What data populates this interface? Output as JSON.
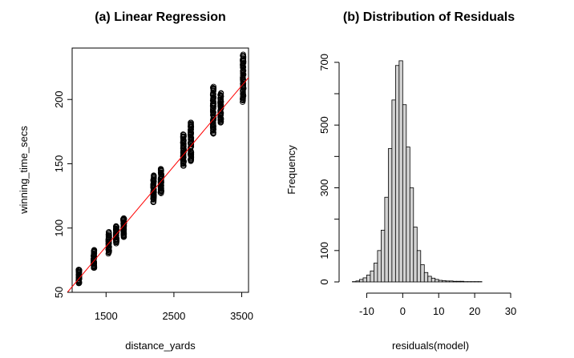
{
  "chart_data": [
    {
      "type": "scatter",
      "title": "(a) Linear Regression",
      "xlabel": "distance_yards",
      "ylabel": "winning_time_secs",
      "xlim": [
        1000,
        3600
      ],
      "ylim": [
        50,
        240
      ],
      "xticks": [
        1500,
        2500,
        3500
      ],
      "yticks": [
        50,
        100,
        150,
        200
      ],
      "point_color": "#000000",
      "line_color": "#ff0000",
      "regression_line": {
        "x": [
          930,
          3600
        ],
        "y": [
          50,
          217
        ]
      },
      "groups": [
        {
          "x": 1100,
          "y_min": 57,
          "y_max": 68
        },
        {
          "x": 1320,
          "y_min": 69,
          "y_max": 83
        },
        {
          "x": 1540,
          "y_min": 80,
          "y_max": 97
        },
        {
          "x": 1650,
          "y_min": 88,
          "y_max": 102
        },
        {
          "x": 1760,
          "y_min": 93,
          "y_max": 108
        },
        {
          "x": 2200,
          "y_min": 120,
          "y_max": 141
        },
        {
          "x": 2310,
          "y_min": 127,
          "y_max": 146
        },
        {
          "x": 2640,
          "y_min": 148,
          "y_max": 173
        },
        {
          "x": 2750,
          "y_min": 152,
          "y_max": 182
        },
        {
          "x": 3080,
          "y_min": 173,
          "y_max": 210
        },
        {
          "x": 3190,
          "y_min": 182,
          "y_max": 205
        },
        {
          "x": 3520,
          "y_min": 198,
          "y_max": 235
        }
      ]
    },
    {
      "type": "bar",
      "title": "(b) Distribution of Residuals",
      "xlabel": "residuals(model)",
      "ylabel": "Frequency",
      "xlim": [
        -15,
        30
      ],
      "ylim": [
        0,
        720
      ],
      "xticks": [
        -10,
        0,
        10,
        20,
        30
      ],
      "yticks": [
        0,
        100,
        300,
        500,
        700
      ],
      "bar_color": "#d3d3d3",
      "bin_width": 1,
      "bins_start": -15,
      "values": [
        0,
        1,
        3,
        8,
        13,
        22,
        35,
        60,
        100,
        165,
        270,
        425,
        580,
        690,
        705,
        565,
        430,
        300,
        175,
        100,
        55,
        30,
        18,
        12,
        8,
        5,
        4,
        3,
        3,
        2,
        2,
        2,
        1,
        1,
        1,
        1,
        1,
        0,
        0,
        0,
        0,
        0,
        0,
        0,
        0
      ]
    }
  ]
}
